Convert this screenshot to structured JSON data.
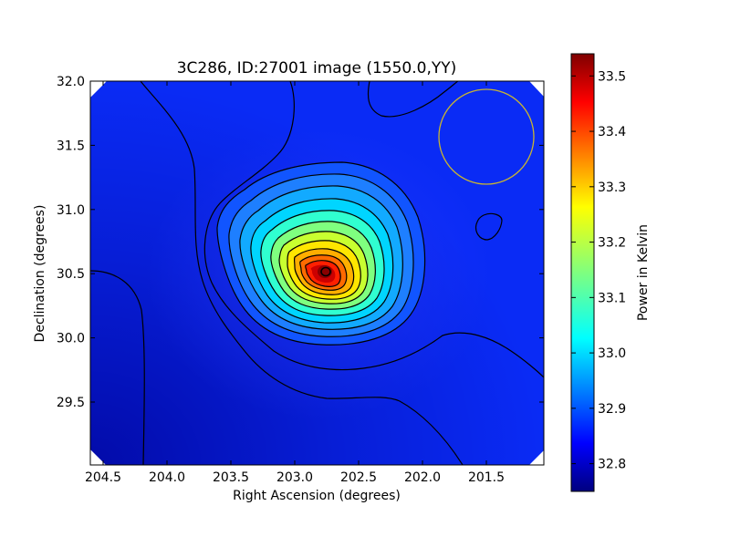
{
  "chart_data": {
    "type": "heatmap",
    "title": "3C286, ID:27001 image (1550.0,YY)",
    "xlabel": "Right Ascension (degrees)",
    "ylabel": "Declination (degrees)",
    "xlim": [
      204.6,
      201.05
    ],
    "ylim": [
      29.01,
      32.0
    ],
    "x_ticks": [
      204.5,
      204.0,
      203.5,
      203.0,
      202.5,
      202.0,
      201.5
    ],
    "x_tick_labels": [
      "204.5",
      "204.0",
      "203.5",
      "203.0",
      "202.5",
      "202.0",
      "201.5"
    ],
    "y_ticks": [
      29.5,
      30.0,
      30.5,
      31.0,
      31.5,
      32.0
    ],
    "y_tick_labels": [
      "29.5",
      "30.0",
      "30.5",
      "31.0",
      "31.5",
      "32.0"
    ],
    "peak": {
      "x": 202.72,
      "y": 30.52,
      "value": 33.54
    },
    "value_range": [
      32.75,
      33.54
    ],
    "colormap": "jet",
    "contours": true,
    "beam_circle": {
      "x": 201.48,
      "y": 31.56,
      "radius_deg": 0.37,
      "color": "#c8b432"
    },
    "colorbar": {
      "label": "Power in Kelvin",
      "min": 32.75,
      "max": 33.54,
      "ticks": [
        32.8,
        32.9,
        33.0,
        33.1,
        33.2,
        33.3,
        33.4,
        33.5
      ],
      "tick_labels": [
        "32.8",
        "32.9",
        "33.0",
        "33.1",
        "33.2",
        "33.3",
        "33.4",
        "33.5"
      ]
    }
  }
}
